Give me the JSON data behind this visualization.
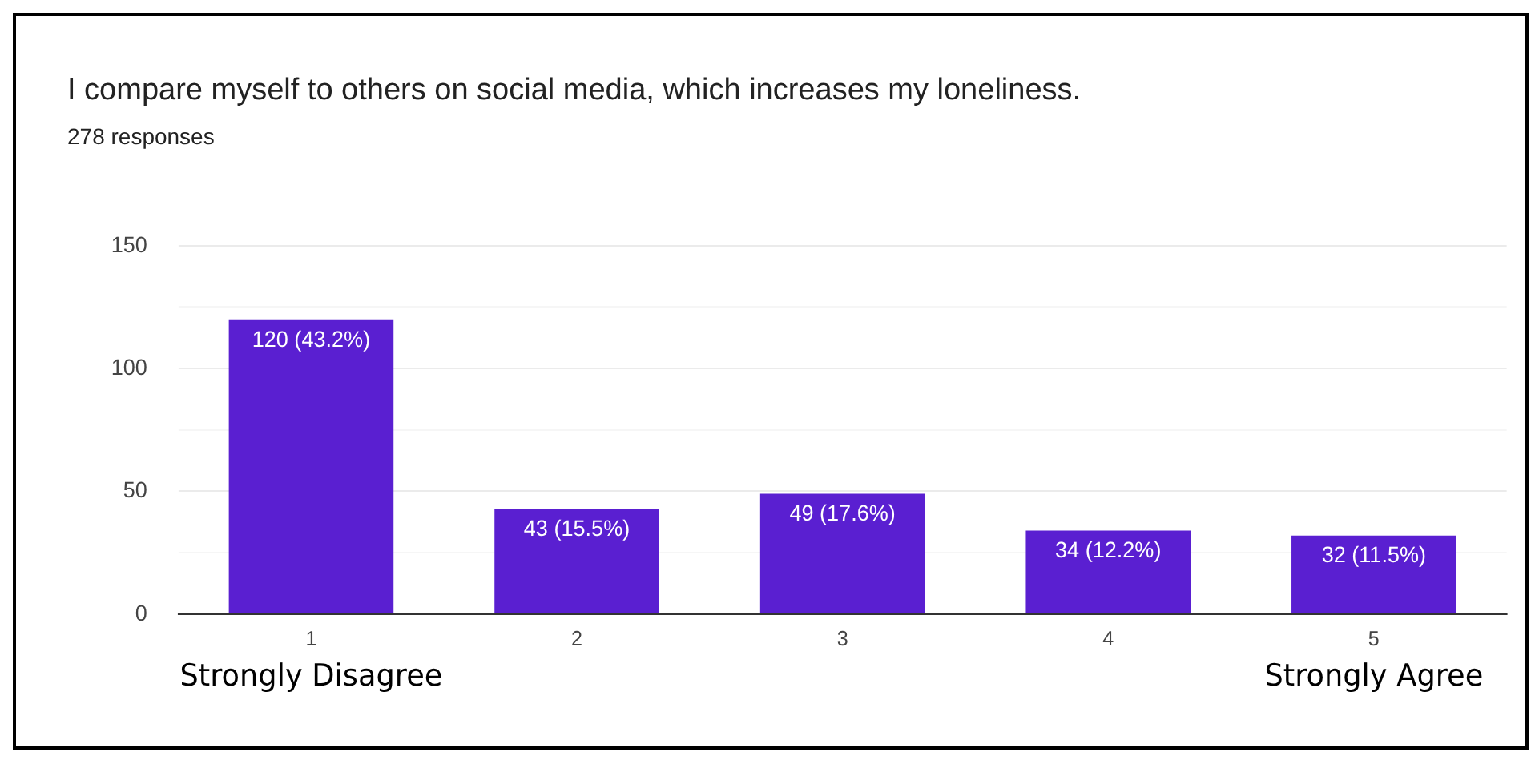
{
  "chart_data": {
    "type": "bar",
    "title": "I compare myself to others on social media, which increases my loneliness.",
    "subtitle": "278 responses",
    "categories": [
      "1",
      "2",
      "3",
      "4",
      "5"
    ],
    "values": [
      120,
      43,
      49,
      34,
      32
    ],
    "color": "#5a1fd1",
    "value_labels": [
      "120 (43.2%)",
      "43 (15.5%)",
      "49 (17.6%)",
      "34 (12.2%)",
      "32 (11.5%)"
    ],
    "ylim": [
      0,
      150
    ],
    "yticks": [
      0,
      {
        "value": 25,
        "label": null
      },
      50,
      {
        "value": 75,
        "label": null
      },
      100,
      {
        "value": 125,
        "label": null
      },
      150
    ],
    "grid": "y",
    "legend": false,
    "annotations": [
      "Strongly Disagree",
      "Strongly Agree"
    ]
  }
}
